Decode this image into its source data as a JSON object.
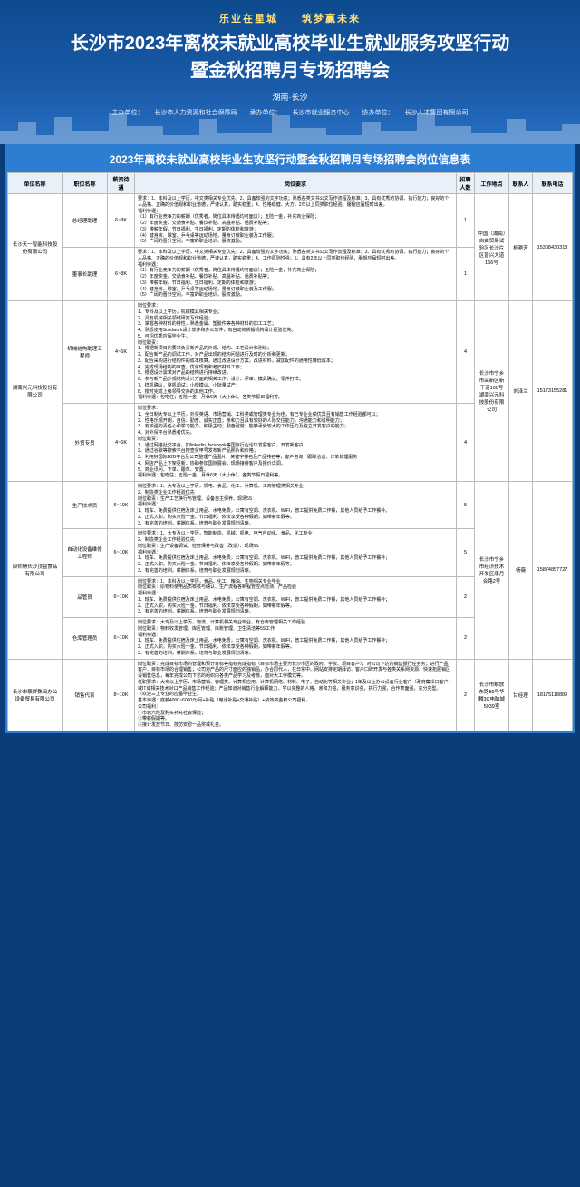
{
  "hero": {
    "slogan": "乐业在星城　　筑梦赢未来",
    "title1": "长沙市2023年离校未就业高校毕业生就业服务攻坚行动",
    "title2": "暨金秋招聘月专场招聘会",
    "location": "湖南·长沙",
    "org_host_label": "主办单位：",
    "org_host": "长沙市人力资源和社会保障局",
    "org_undertake_label": "承办单位：",
    "org_undertake": "长沙市就业服务中心",
    "org_assist_label": "协办单位：",
    "org_assist": "长沙人才集团有限公司"
  },
  "table": {
    "title": "2023年离校未就业高校毕业生攻坚行动暨金秋招聘月专场招聘会岗位信息表",
    "headers": [
      "单位名称",
      "职位名称",
      "薪资待遇",
      "岗位要求",
      "招聘人数",
      "工作地点",
      "联系人",
      "联系电话"
    ],
    "rows": [
      {
        "company": "长沙天一智能科技股份有限公司",
        "company_rowspan": 2,
        "job": "总经理助理",
        "salary": "6~8K",
        "req": "要求：1、本科及以上学历，中文类相关专业优先；2、具备较强的文字功底；熟悉各类文书公文写作流程及标准；3、具有优秀的协调、执行能力；良好的个人品格、正确的价值观和职业道德，严谨认真，踏实稳重；4、性格稳健、大方，2年以上同类职位经验，服帽应届短时出差。\n福利待遇：\n（1）有行业竞争力的薪酬（优秀者，岗位具体待遇均可面议）；五险一金，补充商业保险；\n（2）年度奖金、交通食补贴、餐饮补贴、高温补贴、话费补贴等；\n（3）带薪年假、节日福利、生日福利、定期的体检和旅游；\n（4）健身房、球室、乒乓桌等运动场地，量身订做职业装及工作服；\n（5）广阔的晋升空间，丰富的职业培训，股权激励。",
        "count": "1",
        "loc": "中国（湖南）自由贸易试验区长沙片区普兴大道166号",
        "loc_rowspan": 2,
        "contact": "柳艳芳",
        "contact_rowspan": 2,
        "phone": "15308430313",
        "phone_rowspan": 2
      },
      {
        "job": "董事长助理",
        "salary": "6~8K",
        "req": "要求：1、本科及以上学历，中文类相关专业优先；2、具备较强的文字功底；熟悉各类文书公文写作流程及标准；3、具有优秀的协调、执行能力；良好的个人品格、正确的价值观和职业道德，严谨认真，踏实稳重；4、工作原则性强；5、具有2年以上同类职位经验，服帽应届短时出差。\n福利待遇：\n（1）有行业竞争力的薪酬（优秀者，岗位具体待遇均可面议）；五险一金，补充商业保险；\n（2）年度奖金、交通食补贴、餐饮补贴、高温补贴、话费补贴等；\n（3）带薪年假、节日福利、生日福利、定期的体检和旅游；\n（4）健身房、球室、乒乓桌等运动场地，量身订做职业装及工作服；\n（5）广阔的晋升空间，丰富的职业培训，股权激励。",
        "count": "1"
      },
      {
        "company": "湖南兴元科技股份有限公司",
        "company_rowspan": 2,
        "job": "机械结构助理工程师",
        "salary": "4~6K",
        "req": "岗位要求：\n1、专科及以上学历，机械模具相关专业；\n2、具有机械相关领域研究写作经验；\n3、掌握各种材料的特性，熟悉金属、塑胶件等各种材料的加工工艺；\n4、熟悉使用Solidwork设计软件和办公软件，有自动筛货播机构设计经验优先。\n5、可招优秀应届毕业生。\n岗位职责：\n1、根据新项目的要求负责新产品的外观、结构、工艺设计和测绘；\n2、配合新产品的调试工作，对产品出现的结构问题进行及时的分析和更新；\n3、配合采购进行结构件的成本核算，通过改进设计方案，改进材料，减加配件的通用性降低成本；\n4、完成现场结构的审查，优化现有和老旧材料工作；\n5、根据设计需求对产品的结构进行持续改进。\n6、参与新产品外观结构设计方面的相关工作，设计、评审、模具确认、零件打样；\n7、样机确认，整机调试；小规模认、小批量试产；\n8、按时完成上级领导交办的其他工作。\n福利待遇：包吃住；五险一金；月休6天（大小休）。各类节假日福利等。",
        "count": "4",
        "loc": "长沙市宁乡市高新区新干道100号湖南兴元科技股份有限公司",
        "loc_rowspan": 2,
        "contact": "刘泽兰",
        "contact_rowspan": 2,
        "phone": "15173155281",
        "phone_rowspan": 2
      },
      {
        "job": "外贸专员",
        "salary": "4~6K",
        "req": "岗位要求：\n1、全日制大专以上学历，外贸英语、市场营销、工科类或管理类专业为佳，有已专业业绩优异且有销售工作经验都可以；\n2、性格乐观开朗，自信、勤奋、诚实正直；亲和力且具有较好的人际交往能力，沟通能力和说明能力；\n3、有较强的责任心和学习能力，积极主动；勤奋耐劳；能够承受较大的工作压力及独立开发客户的能力；\n4、对外贸平台熟悉者优先。\n岗位职责：\n1、通过网络社交平台，如linkedin, facebook等国际行业论坛发展客户，开发新客户\n2、通过谷歌等搜索平台搜查贸甲号发布新产品照片和价格；\n3、利用好国际B2B平台及公司整理产品图片、关键字排名及产品排名等，客户咨询，跟踪洽谈、订单处理服务\n4、网店产品上下架更新、协助参加国际展会，现场接待客户及报价详调。\n5、商业讯问、下单、跟单、安置。\n福利待遇：包吃住；五险一金、月休6天（大小休）。各类节假日福利等。",
        "count": "4"
      },
      {
        "company": "康师傅长沙顶益食品有限公司",
        "company_rowspan": 4,
        "job": "生产技术员",
        "salary": "6~10K",
        "req": "岗位要求：1、大专及以上学历，机电、食品、化工、计算机、工商管理类相关专业\n2、制造类企业工作经验优先\n岗位职责：生产工艺换行与管理、设备自主保养、现场5S\n福利待遇：\n1、班车、免费提供住宿及床上用品、水电免费，公寓有空调、洗衣机、WIFI，普工提供免费工作餐，其他人员给予工作餐补。\n2、正式入职，购买六险一金、节日福利、依法享受各种假期，如带薪年假等。\n3、有完善的培训，薪酬体系。培育与职业发展规划清晰。",
        "count": "5",
        "loc": "长沙市宁乡市经济技术开发区康月合路2号",
        "loc_rowspan": 4,
        "contact": "杨薇",
        "contact_rowspan": 4,
        "phone": "15874857727",
        "phone_rowspan": 4
      },
      {
        "job": "自动化设备维修工程师",
        "salary": "6~10K",
        "req": "岗位要求：1、大专及以上学历，智能制造、机械、机电、电气自动化、食品、化工专业\n2、制造类企业工作经验优先\n岗位职责：生产设备调试、检修保养与改善（改造）、现场5S\n福利待遇：\n1、班车、免费提供住宿及床上用品、水电免费，公寓有空调、洗衣机、WIFI，普工提供免费工作餐，其他人员给予工作餐补；\n2、正式入职，购买六险一金、节日福利、依法享受各种假期，如带薪年假等。\n3、有完善的培训，薪酬体系。培育与职业发展规划清晰。",
        "count": "5"
      },
      {
        "job": "品管员",
        "salary": "6~10K",
        "req": "岗位要求：1、本科及以上学历，食品、化工、粮油、生物相关专业毕业\n岗位职责：原物料使用品质核核与确认、生产流程各制程管控点检测、产品检验\n福利待遇：\n1、班车、免费提供住宿及床上用品、水电免费，公寓有空调、洗衣机、WIFI，普工提供免费工作餐，其他人员给予工作餐补；\n2、正式入职，购买六险一金、节日福利、依法享受各种假期，如带薪年假等。\n3、有完善的培训，薪酬体系。培育与职业发展规划清晰。",
        "count": "2"
      },
      {
        "job": "仓库管理员",
        "salary": "6~10K",
        "req": "岗位要求：大专及以上学历，物流、计算机相关专业毕业，有仓库管理相关工作经验\n岗位职责：物料收发管理、库区管理、库账管理、卫生清洁等5S工作\n福利待遇：\n1、班车、免费提供住宿及床上用品、水电免费，公寓有空调、洗衣机、WIFI，普工提供免费工作餐，其他人员给予工作餐补；\n2、正式入职，购买六险一金、节日福利、依法享受各种假期，如带薪年假等。\n3、有完善的培训，薪酬体系。培育与职业发展规划清晰。",
        "count": "2"
      },
      {
        "company": "长沙市联群数码办公设备贸易有限公司",
        "company_rowspan": 1,
        "job": "销售代表",
        "salary": "8~10K",
        "req": "岗位职责：完成目标市场的管理和预计目标等指标完成指标（目标市场主要为长沙市区的政府、学校、项目客户）；对公司下达的销售额行任务务；进行产品、客户、目标市场的合理销售；公司对产品的尺寸面应的独销品，办合同代人，在日常中、网站安排定期拜访、客户口碑开发与各类关系网资源、快速拓展销区设销售信息，每年完成公司下达的组织内各类产品学习及考核，面对大工作模式等。\n任职要求：大专以上学历，市场营销、管理类、计算机应用、计算机网络、材料、电子、自动化等相关专业；1年及以上办公设备行业客户（政府集采口客户）或IT成相关技术对口产品销售工作经验；产品知道对销售行业解释能力，学以完整的人格，亲和力强，服务意识强，执行力强，合作表面强，充分完型。\n（欢迎三上专业的应届毕业生）\n基本待遇：底薪4000~6000元/月+补贴（电话补贴+交通补贴）+绩效奖金和公司福利。\n公司福利：\n①市城六险及购买补充社会保险；\n②带薪假期等。\n③接计发放节日、技仿安慰一品奖或礼金。",
        "count": "2",
        "loc": "长沙市解放东路89号华麟3C电脑城5039室",
        "contact": "甘经理",
        "phone": "18175118889"
      }
    ]
  },
  "colors": {
    "hero_grad_top": "#0d4a8f",
    "hero_grad_bot": "#2870c4",
    "accent": "#ffe178",
    "table_header": "#2d7dd2",
    "th_bg": "#e8f0fa"
  }
}
